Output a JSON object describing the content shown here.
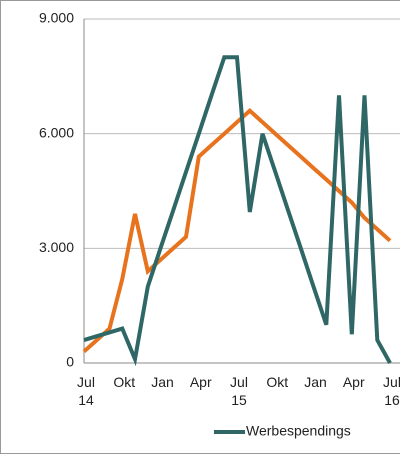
{
  "chart_data": {
    "type": "line",
    "categories": [
      "Jul 14",
      null,
      null,
      "Okt",
      null,
      null,
      "Jan",
      null,
      null,
      "Apr",
      null,
      null,
      "Jul 15",
      null,
      null,
      "Okt",
      null,
      null,
      "Jan",
      null,
      null,
      "Apr",
      null,
      null,
      "Jul 16"
    ],
    "series": [
      {
        "name": "Werbespendings",
        "color": "#2f6767",
        "values": [
          600,
          700,
          800,
          900,
          100,
          2000,
          3000,
          4000,
          5000,
          6000,
          7000,
          8000,
          8000,
          3950,
          6000,
          5000,
          4000,
          3000,
          2000,
          1000,
          7000,
          750,
          7000,
          600,
          0
        ]
      },
      {
        "color": "#e8731f",
        "values": [
          300,
          600,
          900,
          2200,
          3900,
          2400,
          2700,
          3000,
          3300,
          5400,
          5700,
          6000,
          6300,
          6600,
          6300,
          6000,
          5700,
          5400,
          5100,
          4800,
          4500,
          4200,
          3800,
          3500,
          3200
        ]
      }
    ],
    "ylim": [
      0,
      9000
    ],
    "yticks": [
      0,
      {
        "value": 3000,
        "label": "3.000"
      },
      {
        "value": 6000,
        "label": "6.000"
      },
      {
        "value": 9000,
        "label": "9.000"
      }
    ],
    "grid": true
  }
}
